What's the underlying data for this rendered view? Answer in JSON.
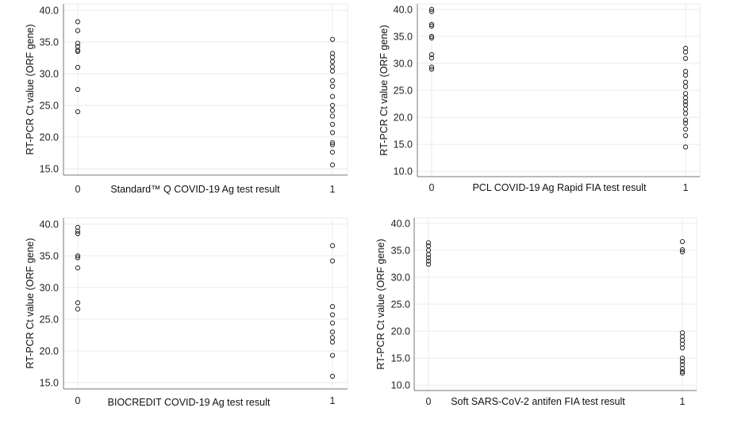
{
  "chart_data": [
    {
      "type": "scatter",
      "xlabel": "Standard™ Q COVID-19 Ag test result",
      "ylabel": "RT-PCR Ct value (ORF gene)",
      "x_ticks": [
        "0",
        "1"
      ],
      "y_ticks": [
        "40.0",
        "35.0",
        "30.0",
        "25.0",
        "20.0",
        "15.0"
      ],
      "ylim": [
        14.0,
        41.0
      ],
      "grid": true,
      "series": [
        {
          "x": 0,
          "values": [
            38.2,
            36.8,
            34.8,
            34.3,
            33.7,
            33.5,
            31.0,
            27.5,
            24.0
          ]
        },
        {
          "x": 1,
          "values": [
            35.4,
            33.2,
            32.6,
            31.9,
            31.1,
            30.4,
            28.9,
            28.0,
            26.4,
            25.0,
            24.2,
            23.3,
            22.0,
            20.7,
            19.1,
            18.8,
            17.6,
            15.6
          ]
        }
      ]
    },
    {
      "type": "scatter",
      "xlabel": "PCL COVID-19 Ag Rapid FIA test result",
      "ylabel": "RT-PCR Ct value (ORF gene)",
      "x_ticks": [
        "0",
        "1"
      ],
      "y_ticks": [
        "40.0",
        "35.0",
        "30.0",
        "25.0",
        "20.0",
        "15.0",
        "10.0"
      ],
      "ylim": [
        9.0,
        41.0
      ],
      "grid": true,
      "series": [
        {
          "x": 0,
          "values": [
            40.0,
            39.6,
            37.2,
            36.9,
            35.0,
            34.7,
            31.6,
            31.0,
            29.3,
            28.9
          ]
        },
        {
          "x": 1,
          "values": [
            32.8,
            32.1,
            30.9,
            28.5,
            27.8,
            26.5,
            25.7,
            24.4,
            23.6,
            22.9,
            22.3,
            21.5,
            20.7,
            19.5,
            18.9,
            17.8,
            16.6,
            14.5
          ]
        }
      ]
    },
    {
      "type": "scatter",
      "xlabel": "BIOCREDIT COVID-19 Ag test result",
      "ylabel": "RT-PCR Ct value (ORF gene)",
      "x_ticks": [
        "0",
        "1"
      ],
      "y_ticks": [
        "40.0",
        "35.0",
        "30.0",
        "25.0",
        "20.0",
        "15.0"
      ],
      "ylim": [
        14.0,
        41.0
      ],
      "grid": true,
      "series": [
        {
          "x": 0,
          "values": [
            39.5,
            38.9,
            38.5,
            35.0,
            34.7,
            33.1,
            27.6,
            26.6
          ]
        },
        {
          "x": 1,
          "values": [
            36.6,
            34.2,
            27.0,
            25.7,
            24.4,
            23.0,
            22.1,
            21.4,
            19.3,
            16.0
          ]
        }
      ]
    },
    {
      "type": "scatter",
      "xlabel": "Soft SARS-CoV-2 antifen FIA test result",
      "ylabel": "RT-PCR Ct  value (ORF gene)",
      "x_ticks": [
        "0",
        "1"
      ],
      "y_ticks": [
        "40.0",
        "35.0",
        "30.0",
        "25.0",
        "20.0",
        "15.0",
        "10.0"
      ],
      "ylim": [
        9.0,
        41.0
      ],
      "grid": true,
      "series": [
        {
          "x": 0,
          "values": [
            36.4,
            35.8,
            35.0,
            34.2,
            33.6,
            33.0,
            32.4
          ]
        },
        {
          "x": 1,
          "values": [
            36.6,
            35.1,
            34.7,
            19.7,
            19.0,
            18.3,
            17.6,
            16.9,
            15.0,
            14.4,
            13.8,
            13.1,
            12.5,
            12.2
          ]
        }
      ]
    }
  ]
}
